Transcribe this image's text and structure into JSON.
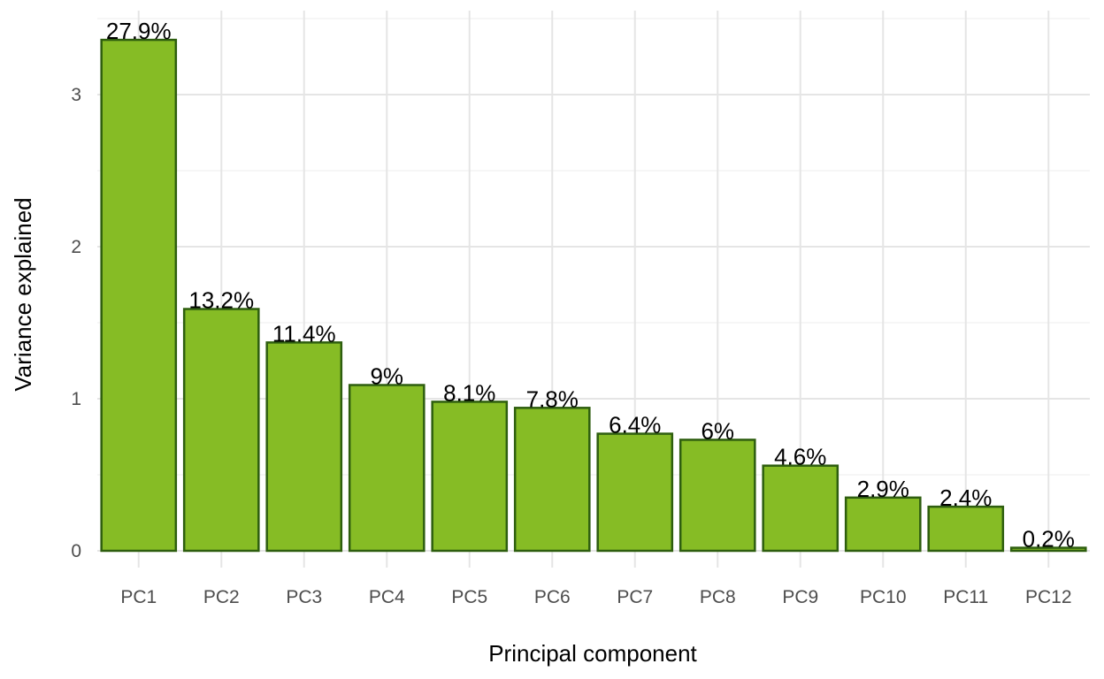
{
  "chart_data": {
    "type": "bar",
    "title": "",
    "xlabel": "Principal component",
    "ylabel": "Variance explained",
    "categories": [
      "PC1",
      "PC2",
      "PC3",
      "PC4",
      "PC5",
      "PC6",
      "PC7",
      "PC8",
      "PC9",
      "PC10",
      "PC11",
      "PC12"
    ],
    "values": [
      3.36,
      1.59,
      1.37,
      1.09,
      0.98,
      0.94,
      0.77,
      0.73,
      0.56,
      0.35,
      0.29,
      0.02
    ],
    "data_labels": [
      "27.9%",
      "13.2%",
      "11.4%",
      "9%",
      "8.1%",
      "7.8%",
      "6.4%",
      "6%",
      "4.6%",
      "2.9%",
      "2.4%",
      "0.2%"
    ],
    "ylim": [
      -0.07,
      3.53
    ],
    "yticks": [
      0,
      1,
      2,
      3
    ],
    "grid": true,
    "legend": "none"
  },
  "style": {
    "bar_fill": "#86bc25",
    "bar_stroke": "#2e5e0f",
    "grid_major": "#e5e5e5",
    "grid_minor": "#f0f0f0",
    "tick_color": "#4d4d4d",
    "text_color": "#000000"
  }
}
